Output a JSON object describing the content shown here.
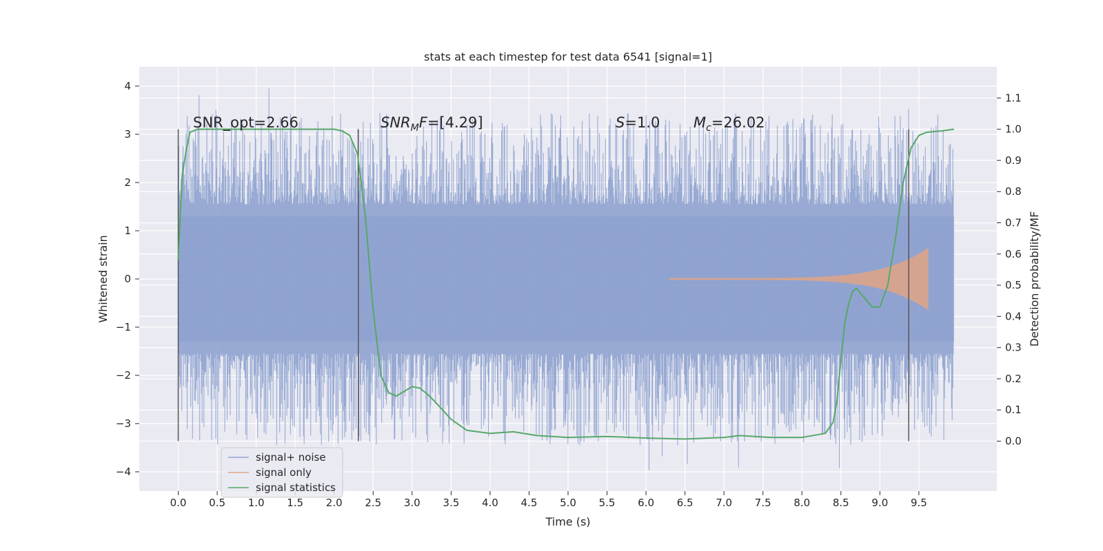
{
  "chart_data": {
    "type": "line",
    "title": "stats at each timestep for test data 6541 [signal=1]",
    "xlabel": "Time (s)",
    "ylabel": "Whitened strain",
    "y2label": "Detection probability/MF",
    "xlim": [
      -0.5,
      10.5
    ],
    "ylim": [
      -4.4,
      4.4
    ],
    "y2lim": [
      -0.16,
      1.2
    ],
    "x_ticks": [
      0.0,
      0.5,
      1.0,
      1.5,
      2.0,
      2.5,
      3.0,
      3.5,
      4.0,
      4.5,
      5.0,
      5.5,
      6.0,
      6.5,
      7.0,
      7.5,
      8.0,
      8.5,
      9.0,
      9.5
    ],
    "x_tick_labels": [
      "0.0",
      "0.5",
      "1.0",
      "1.5",
      "2.0",
      "2.5",
      "3.0",
      "3.5",
      "4.0",
      "4.5",
      "5.0",
      "5.5",
      "6.0",
      "6.5",
      "7.0",
      "7.5",
      "8.0",
      "8.5",
      "9.0",
      "9.5"
    ],
    "y_ticks": [
      4,
      3,
      2,
      1,
      0,
      -1,
      -2,
      -3,
      -4
    ],
    "y_tick_labels": [
      "4",
      "3",
      "2",
      "1",
      "0",
      "−1",
      "−2",
      "−3",
      "−4"
    ],
    "y2_ticks": [
      1.1,
      1.0,
      0.9,
      0.8,
      0.7,
      0.6,
      0.5,
      0.4,
      0.3,
      0.2,
      0.1,
      0.0
    ],
    "y2_tick_labels": [
      "1.1",
      "1.0",
      "0.9",
      "0.8",
      "0.7",
      "0.6",
      "0.5",
      "0.4",
      "0.3",
      "0.2",
      "0.1",
      "0.0"
    ],
    "grid": true,
    "legend_position": "lower-left",
    "series": [
      {
        "name": "signal+ noise",
        "color": "#8fa3cf",
        "axis": "left",
        "x_range": [
          0.0,
          9.95
        ],
        "core_amplitude": 1.3,
        "peak_range": [
          -4.0,
          4.05
        ]
      },
      {
        "name": "signal only",
        "color": "#e0a486",
        "axis": "left",
        "x_range": [
          6.3,
          9.62
        ],
        "peak_amplitude": 0.63
      },
      {
        "name": "signal statistics",
        "color": "#55a868",
        "axis": "right",
        "x": [
          0.0,
          0.05,
          0.1,
          0.15,
          0.25,
          0.5,
          1.0,
          1.5,
          2.0,
          2.1,
          2.2,
          2.3,
          2.4,
          2.5,
          2.6,
          2.7,
          2.8,
          2.9,
          3.0,
          3.1,
          3.2,
          3.3,
          3.5,
          3.7,
          4.0,
          4.3,
          4.6,
          5.0,
          5.5,
          6.0,
          6.5,
          7.0,
          7.2,
          7.6,
          8.0,
          8.3,
          8.4,
          8.45,
          8.5,
          8.55,
          8.6,
          8.65,
          8.7,
          8.8,
          8.9,
          9.0,
          9.1,
          9.2,
          9.3,
          9.4,
          9.5,
          9.6,
          9.8,
          9.95
        ],
        "y": [
          0.58,
          0.85,
          0.93,
          0.99,
          1.0,
          1.0,
          1.0,
          1.0,
          1.0,
          0.995,
          0.98,
          0.92,
          0.72,
          0.42,
          0.21,
          0.155,
          0.145,
          0.16,
          0.175,
          0.17,
          0.15,
          0.125,
          0.07,
          0.035,
          0.025,
          0.03,
          0.018,
          0.012,
          0.015,
          0.01,
          0.007,
          0.012,
          0.018,
          0.012,
          0.012,
          0.025,
          0.06,
          0.13,
          0.26,
          0.38,
          0.44,
          0.48,
          0.49,
          0.46,
          0.43,
          0.43,
          0.5,
          0.65,
          0.83,
          0.94,
          0.98,
          0.99,
          0.995,
          1.0
        ]
      }
    ],
    "vlines_x": [
      0.0,
      2.31,
      9.37
    ],
    "annotations": [
      "SNR_opt=2.66",
      "SNR_MF=[4.29]",
      "S=1.0",
      "M_c=26.02"
    ]
  }
}
